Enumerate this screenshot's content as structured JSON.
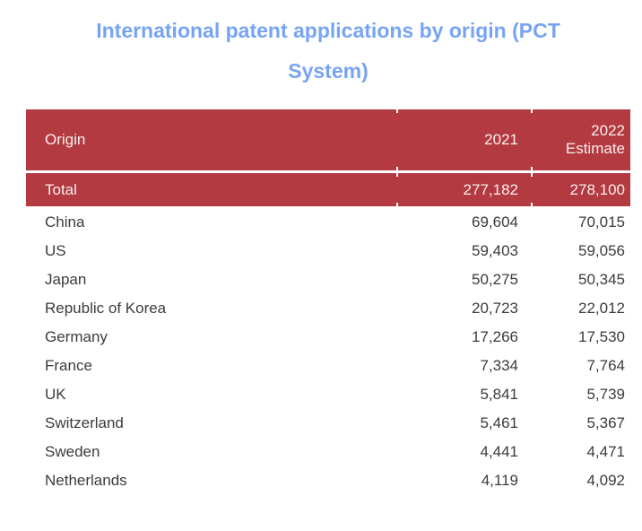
{
  "title": {
    "line1": "International patent applications by origin (PCT",
    "line2": "System)",
    "full": "International patent applications by origin (PCT System)"
  },
  "colors": {
    "table_red": "#b23a40",
    "title_blue": "#77a4f2",
    "header_text": "#faefef",
    "body_text": "#3b3b3b"
  },
  "table": {
    "header": {
      "origin": "Origin",
      "year_2021": "2021",
      "year_2022_line1": "2022",
      "year_2022_line2": "Estimate"
    },
    "total": {
      "origin": "Total",
      "v2021": "277,182",
      "v2022": "278,100"
    },
    "rows": [
      {
        "origin": "China",
        "v2021": "69,604",
        "v2022": "70,015"
      },
      {
        "origin": "US",
        "v2021": "59,403",
        "v2022": "59,056"
      },
      {
        "origin": "Japan",
        "v2021": "50,275",
        "v2022": "50,345"
      },
      {
        "origin": "Republic of Korea",
        "v2021": "20,723",
        "v2022": "22,012"
      },
      {
        "origin": "Germany",
        "v2021": "17,266",
        "v2022": "17,530"
      },
      {
        "origin": "France",
        "v2021": "7,334",
        "v2022": "7,764"
      },
      {
        "origin": "UK",
        "v2021": "5,841",
        "v2022": "5,739"
      },
      {
        "origin": "Switzerland",
        "v2021": "5,461",
        "v2022": "5,367"
      },
      {
        "origin": "Sweden",
        "v2021": "4,441",
        "v2022": "4,471"
      },
      {
        "origin": "Netherlands",
        "v2021": "4,119",
        "v2022": "4,092"
      }
    ]
  },
  "chart_data": {
    "type": "table",
    "title": "International patent applications by origin (PCT System)",
    "columns": [
      "Origin",
      "2021",
      "2022 Estimate"
    ],
    "rows": [
      [
        "Total",
        277182,
        278100
      ],
      [
        "China",
        69604,
        70015
      ],
      [
        "US",
        59403,
        59056
      ],
      [
        "Japan",
        50275,
        50345
      ],
      [
        "Republic of Korea",
        20723,
        22012
      ],
      [
        "Germany",
        17266,
        17530
      ],
      [
        "France",
        7334,
        7764
      ],
      [
        "UK",
        5841,
        5739
      ],
      [
        "Switzerland",
        5461,
        5367
      ],
      [
        "Sweden",
        4441,
        4471
      ],
      [
        "Netherlands",
        4119,
        4092
      ]
    ]
  }
}
